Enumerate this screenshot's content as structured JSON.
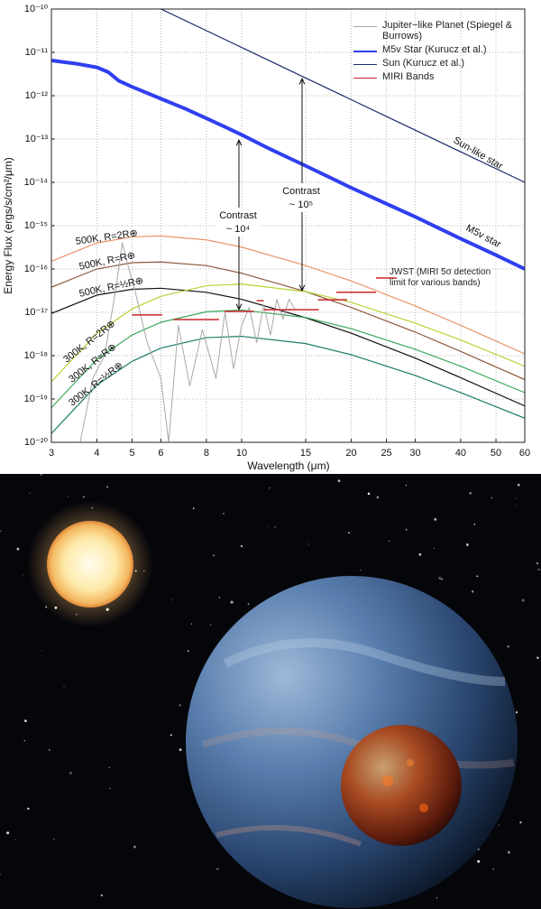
{
  "chart_data": {
    "type": "line",
    "xlabel": "Wavelength (μm)",
    "ylabel": "Energy Flux (ergs/s/cm²/μm)",
    "log_x": true,
    "log_y": true,
    "grid": true,
    "legend_position": "upper right",
    "xlim": [
      3,
      60
    ],
    "ylim": [
      1e-20,
      1e-10
    ],
    "xticks": [
      3,
      4,
      5,
      6,
      8,
      10,
      15,
      20,
      25,
      30,
      40,
      50,
      60
    ],
    "yticks": [
      {
        "value": 1e-20,
        "label": "10⁻²⁰"
      },
      {
        "value": 1e-19,
        "label": "10⁻¹⁹"
      },
      {
        "value": 1e-18,
        "label": "10⁻¹⁸"
      },
      {
        "value": 1e-17,
        "label": "10⁻¹⁷"
      },
      {
        "value": 1e-16,
        "label": "10⁻¹⁶"
      },
      {
        "value": 1e-15,
        "label": "10⁻¹⁵"
      },
      {
        "value": 1e-14,
        "label": "10⁻¹⁴"
      },
      {
        "value": 1e-13,
        "label": "10⁻¹³"
      },
      {
        "value": 1e-12,
        "label": "10⁻¹²"
      },
      {
        "value": 1e-11,
        "label": "10⁻¹¹"
      },
      {
        "value": 1e-10,
        "label": "10⁻¹⁰"
      }
    ],
    "series": [
      {
        "name": "Jupiter−like Planet (Spiegel & Burrows)",
        "color": "#a8a8a8",
        "width": 1,
        "x": [
          3.6,
          3.9,
          4.2,
          4.5,
          4.7,
          4.9,
          5.1,
          5.5,
          6,
          6.3,
          6.7,
          7.2,
          7.8,
          8.5,
          9,
          9.5,
          10,
          10.5,
          11,
          11.5,
          12,
          12.5,
          13,
          13.5,
          14
        ],
        "values": [
          1e-20,
          3e-19,
          1e-18,
          3e-17,
          4e-16,
          1e-16,
          3e-17,
          2e-18,
          3e-19,
          1e-20,
          5e-18,
          2e-19,
          4e-18,
          3e-19,
          1e-17,
          5e-19,
          5e-18,
          1.3e-17,
          2e-18,
          1.5e-17,
          3e-18,
          2e-17,
          7e-18,
          2e-17,
          1.2e-17
        ]
      },
      {
        "name": "M5v Star (Kurucz et al.)",
        "color": "#2f3ff0",
        "width": 4,
        "x": [
          3,
          3.5,
          4,
          4.3,
          4.6,
          5,
          6,
          7,
          8,
          9,
          10,
          12,
          15,
          20,
          25,
          30,
          40,
          50,
          60
        ],
        "values": [
          6.5e-12,
          5.5e-12,
          4.5e-12,
          3.5e-12,
          2.2e-12,
          1.6e-12,
          8.5e-13,
          5e-13,
          3e-13,
          1.9e-13,
          1.25e-13,
          5.8e-14,
          2.4e-14,
          7.5e-15,
          3.2e-15,
          1.6e-15,
          5e-16,
          2.1e-16,
          1e-16
        ]
      },
      {
        "name": "Sun (Kurucz et al.)",
        "color": "#1b2a6b",
        "width": 1.2,
        "x": [
          6,
          10,
          15,
          20,
          30,
          40,
          60
        ],
        "values": [
          1e-10,
          1.3e-11,
          2.56e-12,
          8.1e-13,
          1.6e-13,
          5.06e-14,
          1e-14
        ]
      },
      {
        "name": "MIRI Bands",
        "color": "#c8262b",
        "width": 1.5,
        "x": [
          5.0,
          6.05,
          null,
          6.5,
          8.67,
          null,
          8.97,
          10.8,
          null,
          11.0,
          11.5,
          null,
          11.5,
          13.6,
          null,
          13.4,
          16.3,
          null,
          16.2,
          19.5,
          null,
          18.2,
          23.4,
          null,
          23.4,
          26.7
        ],
        "values": [
          8.7e-18,
          8.7e-18,
          null,
          6.8e-18,
          6.8e-18,
          null,
          1.05e-17,
          1.05e-17,
          null,
          1.86e-17,
          1.86e-17,
          null,
          1.15e-17,
          1.15e-17,
          null,
          1.15e-17,
          1.15e-17,
          null,
          1.95e-17,
          1.95e-17,
          null,
          2.9e-17,
          2.9e-17,
          null,
          6.2e-17,
          6.2e-17
        ]
      }
    ],
    "curves": [
      {
        "name": "500K, R=2R⊕",
        "color": "#e8946a",
        "x": [
          3,
          4,
          5,
          6,
          8,
          10,
          15,
          20,
          30,
          40,
          60
        ],
        "values": [
          1.5e-16,
          4e-16,
          5.5e-16,
          5.8e-16,
          4.7e-16,
          3.2e-16,
          1.2e-16,
          5.3e-17,
          1.4e-17,
          5e-18,
          1.1e-18
        ]
      },
      {
        "name": "500K, R=R⊕",
        "color": "#8a5a3c",
        "x": [
          3,
          4,
          5,
          6,
          8,
          10,
          15,
          20,
          30,
          40,
          60
        ],
        "values": [
          3.8e-17,
          1e-16,
          1.4e-16,
          1.45e-16,
          1.2e-16,
          8e-17,
          3e-17,
          1.3e-17,
          3.5e-18,
          1.25e-18,
          2.8e-19
        ]
      },
      {
        "name": "500K, R=½R⊕",
        "color": "#111111",
        "x": [
          3,
          4,
          5,
          6,
          8,
          10,
          15,
          20,
          30,
          40,
          60
        ],
        "values": [
          9.4e-18,
          2.5e-17,
          3.4e-17,
          3.6e-17,
          2.9e-17,
          2e-17,
          7.5e-18,
          3.3e-18,
          8.8e-19,
          3.1e-19,
          6.9e-20
        ]
      },
      {
        "name": "300K, R=2R⊕",
        "color": "#b6d334",
        "x": [
          3,
          4,
          5,
          6,
          8,
          10,
          15,
          20,
          30,
          40,
          60
        ],
        "values": [
          2.5e-19,
          3.3e-18,
          1.2e-17,
          2.35e-17,
          4.1e-17,
          4.5e-17,
          3e-17,
          1.7e-17,
          5.6e-18,
          2.3e-18,
          5.7e-19
        ]
      },
      {
        "name": "300K, R=R⊕",
        "color": "#3ca85a",
        "x": [
          3,
          4,
          5,
          6,
          8,
          10,
          15,
          20,
          30,
          40,
          60
        ],
        "values": [
          6.3e-20,
          8.2e-19,
          3e-18,
          5.9e-18,
          1.03e-17,
          1.13e-17,
          7.6e-18,
          4.2e-18,
          1.4e-18,
          5.7e-19,
          1.4e-19
        ]
      },
      {
        "name": "300K, R=½R⊕",
        "color": "#1b7a6a",
        "x": [
          3,
          4,
          5,
          6,
          8,
          10,
          15,
          20,
          30,
          40,
          60
        ],
        "values": [
          1.6e-20,
          2.1e-19,
          7.4e-19,
          1.5e-18,
          2.6e-18,
          2.8e-18,
          1.9e-18,
          1.05e-18,
          3.5e-19,
          1.4e-19,
          3.6e-20
        ]
      }
    ],
    "annotations": [
      "Contrast",
      "~ 10⁴",
      "Contrast",
      "~ 10⁵",
      "Sun-like star",
      "M5v star",
      "JWST (MIRI 5σ detection limit for various bands)"
    ]
  }
}
